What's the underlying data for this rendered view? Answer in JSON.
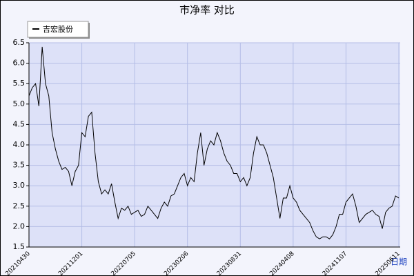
{
  "chart_data": {
    "type": "line",
    "title": "市净率  对比",
    "xlabel": "日期",
    "categories": [
      "20210430",
      null,
      null,
      null,
      null,
      null,
      null,
      null,
      null,
      null,
      null,
      null,
      null,
      null,
      null,
      null,
      "20211201",
      null,
      null,
      null,
      null,
      null,
      null,
      null,
      null,
      null,
      null,
      null,
      null,
      null,
      null,
      null,
      "20220705",
      null,
      null,
      null,
      null,
      null,
      null,
      null,
      null,
      null,
      null,
      null,
      null,
      null,
      null,
      null,
      "20230206",
      null,
      null,
      null,
      null,
      null,
      null,
      null,
      null,
      null,
      null,
      null,
      null,
      null,
      null,
      null,
      "20230831",
      null,
      null,
      null,
      null,
      null,
      null,
      null,
      null,
      null,
      null,
      null,
      null,
      null,
      null,
      null,
      "20240408",
      null,
      null,
      null,
      null,
      null,
      null,
      null,
      null,
      null,
      null,
      null,
      null,
      null,
      null,
      null,
      "20241107",
      null,
      null,
      null,
      null,
      null,
      null,
      null,
      null,
      null,
      null,
      null,
      null,
      null,
      null,
      null,
      "20250611"
    ],
    "series": [
      {
        "name": "吉宏股份",
        "color": "#000000",
        "values": [
          5.2,
          5.4,
          5.5,
          4.95,
          6.4,
          5.5,
          5.2,
          4.3,
          3.9,
          3.6,
          3.4,
          3.45,
          3.35,
          3.0,
          3.35,
          3.5,
          4.3,
          4.2,
          4.7,
          4.8,
          3.8,
          3.1,
          2.8,
          2.9,
          2.8,
          3.05,
          2.6,
          2.2,
          2.45,
          2.4,
          2.5,
          2.3,
          2.35,
          2.4,
          2.25,
          2.3,
          2.5,
          2.4,
          2.3,
          2.2,
          2.45,
          2.6,
          2.5,
          2.75,
          2.8,
          3.0,
          3.2,
          3.3,
          3.0,
          3.2,
          3.1,
          3.8,
          4.3,
          3.5,
          3.9,
          4.1,
          4.0,
          4.3,
          4.1,
          3.8,
          3.6,
          3.5,
          3.3,
          3.3,
          3.1,
          3.2,
          3.0,
          3.2,
          3.8,
          4.2,
          4.0,
          4.0,
          3.8,
          3.5,
          3.2,
          2.7,
          2.2,
          2.7,
          2.7,
          3.0,
          2.7,
          2.6,
          2.4,
          2.3,
          2.2,
          2.1,
          1.9,
          1.75,
          1.7,
          1.75,
          1.75,
          1.7,
          1.8,
          2.0,
          2.3,
          2.3,
          2.6,
          2.7,
          2.8,
          2.5,
          2.1,
          2.2,
          2.3,
          2.35,
          2.4,
          2.3,
          2.25,
          1.95,
          2.35,
          2.45,
          2.5,
          2.75,
          2.7
        ]
      }
    ],
    "ylim": [
      1.5,
      6.5
    ],
    "yticks": [
      1.5,
      {
        "value": 2,
        "label": "2.0"
      },
      2.5,
      {
        "value": 3,
        "label": "3.0"
      },
      3.5,
      {
        "value": 4,
        "label": "4.0"
      },
      4.5,
      {
        "value": 5,
        "label": "5.0"
      },
      5.5,
      {
        "value": 6,
        "label": "6.0"
      },
      6.5
    ],
    "grid": true
  }
}
